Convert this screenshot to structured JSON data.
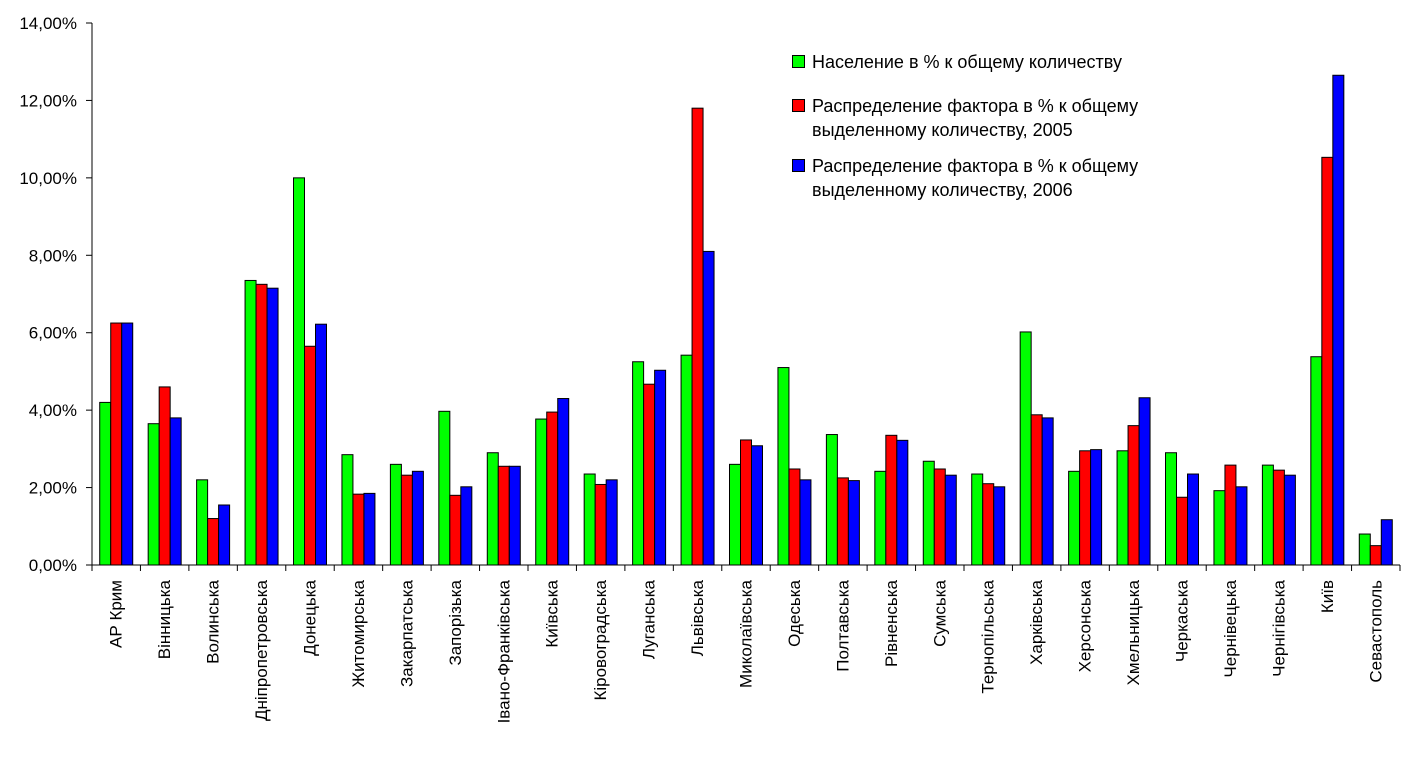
{
  "chart_data": {
    "type": "bar",
    "title": "",
    "xlabel": "",
    "ylabel": "",
    "ylim": [
      0,
      14
    ],
    "yticks": [
      "0,00%",
      "2,00%",
      "4,00%",
      "6,00%",
      "8,00%",
      "10,00%",
      "12,00%",
      "14,00%"
    ],
    "ytick_values": [
      0,
      2,
      4,
      6,
      8,
      10,
      12,
      14
    ],
    "grid": false,
    "legend_position": "top-right",
    "categories": [
      "АР Крим",
      "Вінницька",
      "Волинська",
      "Дніпропетровська",
      "Донецька",
      "Житомирська",
      "Закарпатська",
      "Запорізька",
      "Івано-Франківська",
      "Київська",
      "Кіровоградська",
      "Луганська",
      "Львівська",
      "Миколаївська",
      "Одеська",
      "Полтавська",
      "Рівненська",
      "Сумська",
      "Тернопільська",
      "Харківська",
      "Херсонська",
      "Хмельницька",
      "Черкаська",
      "Чернівецька",
      "Чернігівська",
      "Київ",
      "Севастополь"
    ],
    "series": [
      {
        "name": "Население в % к общему количеству",
        "color": "#00ff00",
        "values": [
          4.2,
          3.65,
          2.2,
          7.35,
          10.0,
          2.85,
          2.6,
          3.97,
          2.9,
          3.77,
          2.35,
          5.25,
          5.42,
          2.6,
          5.1,
          3.37,
          2.42,
          2.68,
          2.35,
          6.02,
          2.42,
          2.95,
          2.9,
          1.92,
          2.58,
          5.38,
          0.8
        ]
      },
      {
        "name": "Распределение фактора в % к общему\nвыделенному количеству, 2005",
        "color": "#ff0000",
        "values": [
          6.25,
          4.6,
          1.2,
          7.25,
          5.65,
          1.83,
          2.32,
          1.8,
          2.55,
          3.95,
          2.08,
          4.67,
          11.8,
          3.23,
          2.48,
          2.25,
          3.35,
          2.48,
          2.1,
          3.88,
          2.95,
          3.6,
          1.75,
          2.58,
          2.45,
          10.53,
          0.5
        ]
      },
      {
        "name": "Распределение фактора в % к общему\nвыделенному количеству, 2006",
        "color": "#0000ff",
        "values": [
          6.25,
          3.8,
          1.55,
          7.15,
          6.22,
          1.85,
          2.42,
          2.02,
          2.55,
          4.3,
          2.2,
          5.03,
          8.1,
          3.08,
          2.2,
          2.18,
          3.22,
          2.32,
          2.02,
          3.8,
          2.98,
          4.32,
          2.35,
          2.02,
          2.32,
          12.65,
          1.17
        ]
      }
    ]
  }
}
